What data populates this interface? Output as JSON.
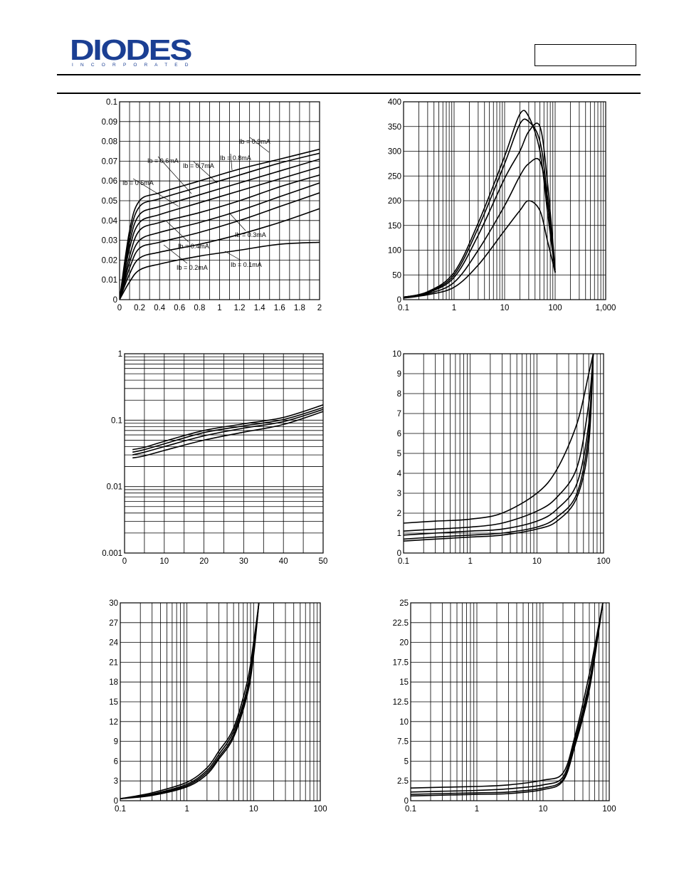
{
  "header": {
    "logo_text": "DIODES",
    "logo_subtext": "I N C O R P O R A T E D"
  },
  "colors": {
    "ink": "#000000",
    "logo_blue": "#1b3f93",
    "grid": "#000000"
  },
  "chart_data": [
    {
      "type": "line",
      "xscale": "linear",
      "yscale": "linear",
      "xlim": [
        0,
        2
      ],
      "ylim": [
        0,
        0.1
      ],
      "xticks": [
        0,
        0.2,
        0.4,
        0.6,
        0.8,
        1,
        1.2,
        1.4,
        1.6,
        1.8,
        2
      ],
      "xtick_labels": [
        "0",
        "0.2",
        "0.4",
        "0.6",
        "0.8",
        "1",
        "1.2",
        "1.4",
        "1.6",
        "1.8",
        "2"
      ],
      "yticks": [
        0,
        0.01,
        0.02,
        0.03,
        0.04,
        0.05,
        0.06,
        0.07,
        0.08,
        0.09,
        0.1
      ],
      "ytick_labels": [
        "0",
        "0.01",
        "0.02",
        "0.03",
        "0.04",
        "0.05",
        "0.06",
        "0.07",
        "0.08",
        "0.09",
        "0.1"
      ],
      "annotations": [
        "Ib = 0.1mA",
        "Ib = 0.2mA",
        "Ib = 0.3mA",
        "Ib = 0.4mA",
        "Ib = 0.5mA",
        "Ib = 0.6mA",
        "Ib = 0.7mA",
        "Ib = 0.8mA",
        "Ib = 0.9mA"
      ],
      "series": [
        {
          "x": [
            0,
            0.1,
            0.2,
            0.4,
            0.8,
            1.2,
            1.6,
            2.0
          ],
          "y": [
            0,
            0.009,
            0.015,
            0.018,
            0.022,
            0.025,
            0.028,
            0.029
          ]
        },
        {
          "x": [
            0,
            0.1,
            0.2,
            0.4,
            0.8,
            1.2,
            1.6,
            2.0
          ],
          "y": [
            0,
            0.013,
            0.021,
            0.024,
            0.028,
            0.033,
            0.039,
            0.046
          ]
        },
        {
          "x": [
            0,
            0.1,
            0.2,
            0.4,
            0.8,
            1.2,
            1.6,
            2.0
          ],
          "y": [
            0,
            0.016,
            0.026,
            0.029,
            0.034,
            0.04,
            0.047,
            0.054
          ]
        },
        {
          "x": [
            0,
            0.1,
            0.2,
            0.4,
            0.8,
            1.2,
            1.6,
            2.0
          ],
          "y": [
            0,
            0.019,
            0.03,
            0.034,
            0.039,
            0.045,
            0.052,
            0.059
          ]
        },
        {
          "x": [
            0,
            0.1,
            0.2,
            0.4,
            0.8,
            1.2,
            1.6,
            2.0
          ],
          "y": [
            0,
            0.022,
            0.035,
            0.039,
            0.044,
            0.05,
            0.057,
            0.063
          ]
        },
        {
          "x": [
            0,
            0.1,
            0.2,
            0.4,
            0.8,
            1.2,
            1.6,
            2.0
          ],
          "y": [
            0,
            0.026,
            0.039,
            0.043,
            0.049,
            0.055,
            0.061,
            0.067
          ]
        },
        {
          "x": [
            0,
            0.1,
            0.2,
            0.4,
            0.8,
            1.2,
            1.6,
            2.0
          ],
          "y": [
            0,
            0.029,
            0.043,
            0.047,
            0.053,
            0.059,
            0.065,
            0.071
          ]
        },
        {
          "x": [
            0,
            0.1,
            0.2,
            0.4,
            0.8,
            1.2,
            1.6,
            2.0
          ],
          "y": [
            0,
            0.032,
            0.047,
            0.051,
            0.057,
            0.063,
            0.069,
            0.074
          ]
        },
        {
          "x": [
            0,
            0.1,
            0.2,
            0.4,
            0.8,
            1.2,
            1.6,
            2.0
          ],
          "y": [
            0,
            0.035,
            0.05,
            0.054,
            0.06,
            0.066,
            0.071,
            0.076
          ]
        }
      ]
    },
    {
      "type": "line",
      "xscale": "log",
      "yscale": "linear",
      "xlim": [
        0.1,
        1000
      ],
      "ylim": [
        0,
        400
      ],
      "xticks": [
        0.1,
        1,
        10,
        100,
        1000
      ],
      "xtick_labels": [
        "0.1",
        "1",
        "10",
        "100",
        "1,000"
      ],
      "yticks": [
        0,
        50,
        100,
        150,
        200,
        250,
        300,
        350,
        400
      ],
      "ytick_labels": [
        "0",
        "50",
        "100",
        "150",
        "200",
        "250",
        "300",
        "350",
        "400"
      ],
      "series": [
        {
          "x": [
            0.1,
            0.3,
            1,
            3,
            10,
            20,
            30,
            50,
            70,
            100
          ],
          "y": [
            5,
            12,
            35,
            100,
            190,
            250,
            275,
            280,
            200,
            55
          ]
        },
        {
          "x": [
            0.1,
            0.3,
            1,
            3,
            10,
            20,
            30,
            50,
            70,
            100
          ],
          "y": [
            5,
            14,
            45,
            130,
            245,
            300,
            340,
            350,
            240,
            60
          ]
        },
        {
          "x": [
            0.1,
            0.3,
            1,
            3,
            10,
            20,
            30,
            50,
            70,
            100
          ],
          "y": [
            5,
            15,
            50,
            145,
            275,
            355,
            360,
            320,
            210,
            55
          ]
        },
        {
          "x": [
            0.1,
            0.3,
            1,
            3,
            10,
            20,
            30,
            50,
            70,
            100
          ],
          "y": [
            5,
            16,
            55,
            155,
            290,
            375,
            370,
            300,
            180,
            55
          ]
        },
        {
          "x": [
            0.1,
            0.3,
            1,
            3,
            10,
            20,
            30,
            50,
            70,
            100
          ],
          "y": [
            3,
            10,
            25,
            70,
            140,
            180,
            200,
            180,
            120,
            55
          ]
        }
      ]
    },
    {
      "type": "line",
      "xscale": "linear",
      "yscale": "log",
      "xlim": [
        0,
        50
      ],
      "ylim": [
        0.001,
        1
      ],
      "xticks": [
        0,
        10,
        20,
        30,
        40,
        50
      ],
      "xtick_labels": [
        "0",
        "10",
        "20",
        "30",
        "40",
        "50"
      ],
      "yticks": [
        0.001,
        0.01,
        0.1,
        1
      ],
      "ytick_labels": [
        "0.001",
        "0.01",
        "0.1",
        "1"
      ],
      "series": [
        {
          "x": [
            2,
            5,
            10,
            20,
            30,
            40,
            50
          ],
          "y": [
            0.036,
            0.039,
            0.048,
            0.07,
            0.088,
            0.11,
            0.17
          ]
        },
        {
          "x": [
            2,
            5,
            10,
            20,
            30,
            40,
            50
          ],
          "y": [
            0.033,
            0.036,
            0.044,
            0.065,
            0.082,
            0.102,
            0.155
          ]
        },
        {
          "x": [
            2,
            5,
            10,
            20,
            30,
            40,
            50
          ],
          "y": [
            0.03,
            0.033,
            0.04,
            0.058,
            0.076,
            0.095,
            0.145
          ]
        },
        {
          "x": [
            2,
            5,
            10,
            20,
            30,
            40,
            50
          ],
          "y": [
            0.027,
            0.029,
            0.035,
            0.05,
            0.066,
            0.086,
            0.135
          ]
        }
      ]
    },
    {
      "type": "line",
      "xscale": "log",
      "yscale": "linear",
      "xlim": [
        0.1,
        100
      ],
      "ylim": [
        0,
        10
      ],
      "xticks": [
        0.1,
        1,
        10,
        100
      ],
      "xtick_labels": [
        "0.1",
        "1",
        "10",
        "100"
      ],
      "yticks": [
        0,
        1,
        2,
        3,
        4,
        5,
        6,
        7,
        8,
        9,
        10
      ],
      "ytick_labels": [
        "0",
        "1",
        "2",
        "3",
        "4",
        "5",
        "6",
        "7",
        "8",
        "9",
        "10"
      ],
      "series": [
        {
          "x": [
            0.1,
            0.3,
            1,
            3,
            10,
            20,
            40,
            60,
            70
          ],
          "y": [
            1.5,
            1.6,
            1.7,
            2.0,
            3.0,
            4.2,
            6.5,
            9.0,
            10
          ]
        },
        {
          "x": [
            0.1,
            0.3,
            1,
            3,
            10,
            20,
            40,
            60,
            70
          ],
          "y": [
            1.1,
            1.2,
            1.3,
            1.5,
            2.1,
            2.8,
            4.3,
            7.5,
            10
          ]
        },
        {
          "x": [
            0.1,
            0.3,
            1,
            3,
            10,
            20,
            40,
            60,
            70
          ],
          "y": [
            0.9,
            1.0,
            1.1,
            1.2,
            1.6,
            2.2,
            3.5,
            6.5,
            10
          ]
        },
        {
          "x": [
            0.1,
            0.3,
            1,
            3,
            10,
            20,
            40,
            60,
            70
          ],
          "y": [
            0.7,
            0.8,
            0.9,
            1.0,
            1.3,
            1.8,
            3.0,
            6.0,
            10
          ]
        },
        {
          "x": [
            0.1,
            0.3,
            1,
            3,
            10,
            20,
            40,
            60,
            70
          ],
          "y": [
            0.6,
            0.7,
            0.8,
            0.9,
            1.2,
            1.6,
            2.8,
            5.5,
            10
          ]
        }
      ]
    },
    {
      "type": "line",
      "xscale": "log",
      "yscale": "linear",
      "xlim": [
        0.1,
        100
      ],
      "ylim": [
        0,
        30
      ],
      "xticks": [
        0.1,
        1,
        10,
        100
      ],
      "xtick_labels": [
        "0.1",
        "1",
        "10",
        "100"
      ],
      "yticks": [
        0,
        3,
        6,
        9,
        12,
        15,
        18,
        21,
        24,
        27,
        30
      ],
      "ytick_labels": [
        "0",
        "3",
        "6",
        "9",
        "12",
        "15",
        "18",
        "21",
        "24",
        "27",
        "30"
      ],
      "series": [
        {
          "x": [
            0.1,
            0.3,
            1,
            2,
            3,
            5,
            8,
            10,
            12
          ],
          "y": [
            0.3,
            1.2,
            2.8,
            5.0,
            7.5,
            11,
            18,
            24,
            30
          ]
        },
        {
          "x": [
            0.1,
            0.3,
            1,
            2,
            3,
            5,
            8,
            10,
            12
          ],
          "y": [
            0.3,
            1.0,
            2.5,
            4.6,
            7.0,
            10.5,
            17,
            23,
            30
          ]
        },
        {
          "x": [
            0.1,
            0.3,
            1,
            2,
            3,
            5,
            8,
            10,
            12
          ],
          "y": [
            0.3,
            0.9,
            2.3,
            4.3,
            6.6,
            10,
            16.5,
            22.5,
            30
          ]
        },
        {
          "x": [
            0.1,
            0.3,
            1,
            2,
            3,
            5,
            8,
            10,
            12
          ],
          "y": [
            0.3,
            0.8,
            2.1,
            4.0,
            6.3,
            9.6,
            16,
            22,
            30
          ]
        }
      ]
    },
    {
      "type": "line",
      "xscale": "log",
      "yscale": "linear",
      "xlim": [
        0.1,
        100
      ],
      "ylim": [
        0,
        25
      ],
      "xticks": [
        0.1,
        1,
        10,
        100
      ],
      "xtick_labels": [
        "0.1",
        "1",
        "10",
        "100"
      ],
      "yticks": [
        0,
        2.5,
        5,
        7.5,
        10,
        12.5,
        15,
        17.5,
        20,
        22.5,
        25
      ],
      "ytick_labels": [
        "0",
        "2.5",
        "5",
        "7.5",
        "10",
        "12.5",
        "15",
        "17.5",
        "20",
        "22.5",
        "25"
      ],
      "series": [
        {
          "x": [
            0.1,
            0.3,
            1,
            3,
            10,
            20,
            30,
            50,
            80
          ],
          "y": [
            1.6,
            1.7,
            1.8,
            2.0,
            2.6,
            3.5,
            8,
            16,
            25
          ]
        },
        {
          "x": [
            0.1,
            0.3,
            1,
            3,
            10,
            20,
            30,
            50,
            80
          ],
          "y": [
            1.1,
            1.2,
            1.3,
            1.5,
            2.0,
            3.0,
            7.5,
            15,
            25
          ]
        },
        {
          "x": [
            0.1,
            0.3,
            1,
            3,
            10,
            20,
            30,
            50,
            80
          ],
          "y": [
            0.8,
            0.9,
            1.0,
            1.1,
            1.6,
            2.7,
            7,
            14.5,
            25
          ]
        },
        {
          "x": [
            0.1,
            0.3,
            1,
            3,
            10,
            20,
            30,
            50,
            80
          ],
          "y": [
            0.6,
            0.7,
            0.8,
            0.9,
            1.4,
            2.5,
            6.8,
            14,
            25
          ]
        }
      ]
    }
  ]
}
